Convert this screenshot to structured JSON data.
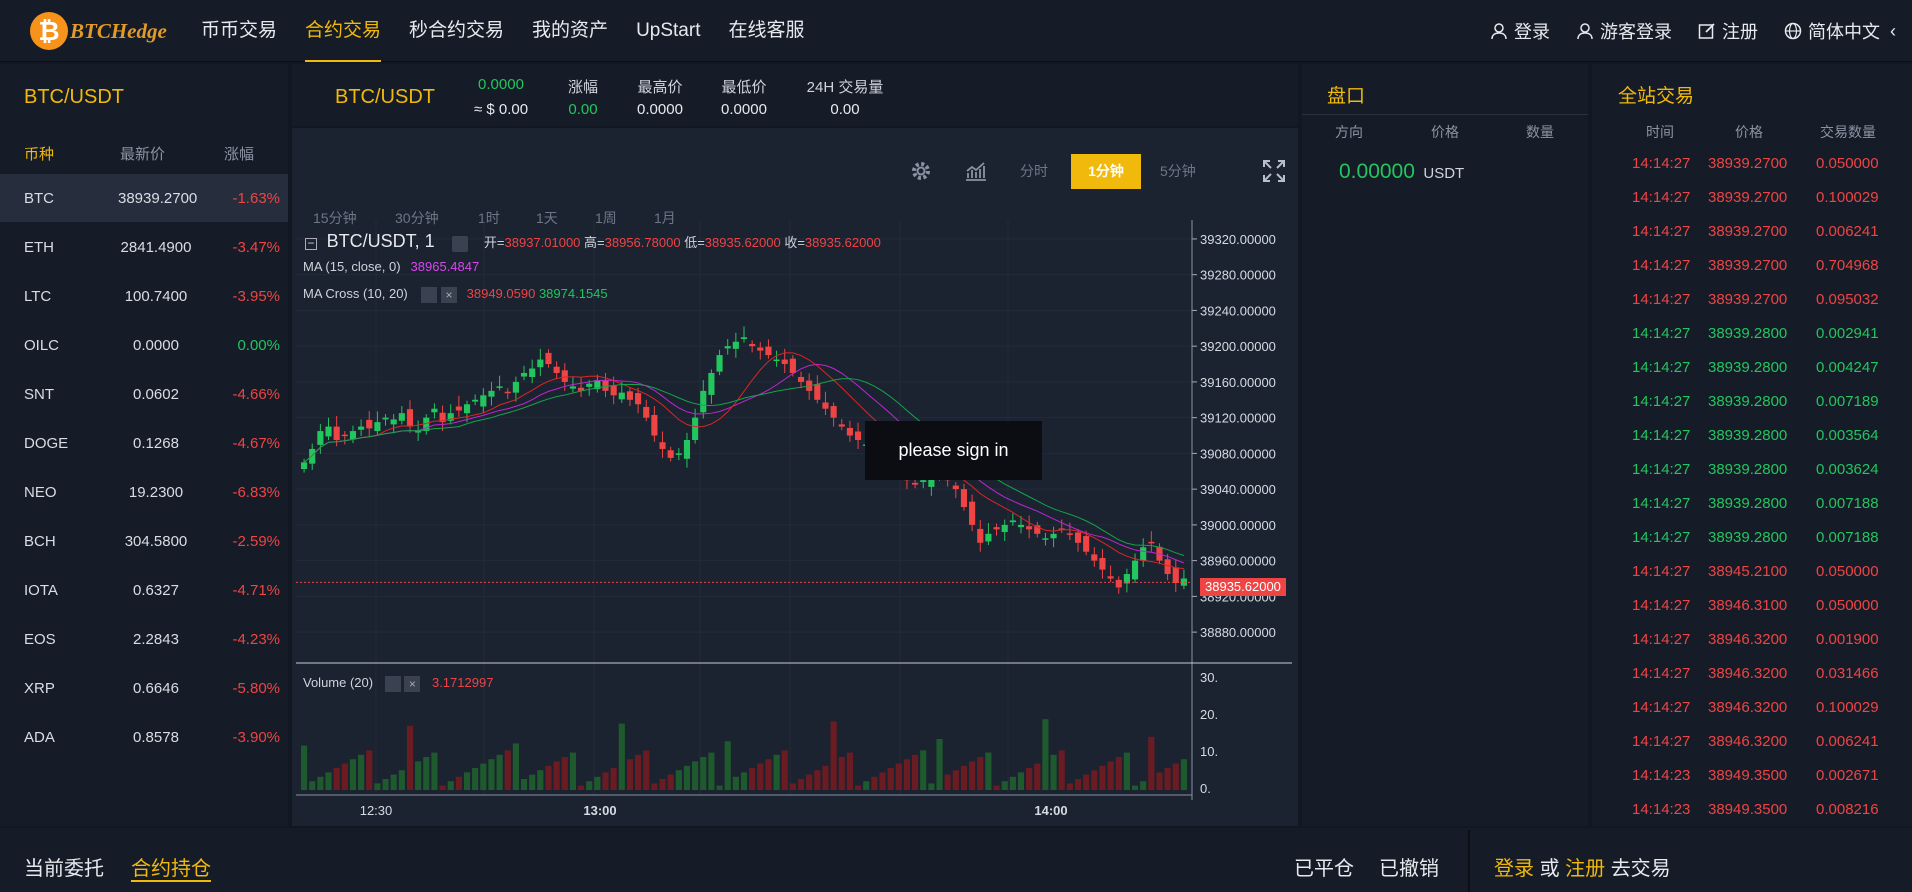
{
  "header": {
    "logo_symbol": "₿",
    "logo_text": "BTCHedge",
    "nav": [
      "币币交易",
      "合约交易",
      "秒合约交易",
      "我的资产",
      "UpStart",
      "在线客服"
    ],
    "login": "登录",
    "guest_login": "游客登录",
    "register": "注册",
    "language": "简体中文"
  },
  "market": {
    "title": "BTC/USDT",
    "col_coin": "币种",
    "col_price": "最新价",
    "col_change": "涨幅",
    "rows": [
      {
        "coin": "BTC",
        "price": "38939.2700",
        "change": "-1.63%",
        "dir": "down"
      },
      {
        "coin": "ETH",
        "price": "2841.4900",
        "change": "-3.47%",
        "dir": "down"
      },
      {
        "coin": "LTC",
        "price": "100.7400",
        "change": "-3.95%",
        "dir": "down"
      },
      {
        "coin": "OILC",
        "price": "0.0000",
        "change": "0.00%",
        "dir": "up"
      },
      {
        "coin": "SNT",
        "price": "0.0602",
        "change": "-4.66%",
        "dir": "down"
      },
      {
        "coin": "DOGE",
        "price": "0.1268",
        "change": "-4.67%",
        "dir": "down"
      },
      {
        "coin": "NEO",
        "price": "19.2300",
        "change": "-6.83%",
        "dir": "down"
      },
      {
        "coin": "BCH",
        "price": "304.5800",
        "change": "-2.59%",
        "dir": "down"
      },
      {
        "coin": "IOTA",
        "price": "0.6327",
        "change": "-4.71%",
        "dir": "down"
      },
      {
        "coin": "EOS",
        "price": "2.2843",
        "change": "-4.23%",
        "dir": "down"
      },
      {
        "coin": "XRP",
        "price": "0.6646",
        "change": "-5.80%",
        "dir": "down"
      },
      {
        "coin": "ADA",
        "price": "0.8578",
        "change": "-3.90%",
        "dir": "down"
      }
    ]
  },
  "ticker": {
    "pair": "BTC/USDT",
    "price": "0.0000",
    "price_usd": "≈ $ 0.00",
    "change_label": "涨幅",
    "change": "0.00",
    "high_label": "最高价",
    "high": "0.0000",
    "low_label": "最低价",
    "low": "0.0000",
    "vol_label": "24H 交易量",
    "vol": "0.00"
  },
  "chart_toolbar": {
    "timeframes_top": [
      "分时",
      "1分钟",
      "5分钟"
    ],
    "timeframes_bottom": [
      "15分钟",
      "30分钟",
      "1时",
      "1天",
      "1周",
      "1月"
    ],
    "active": "1分钟"
  },
  "chart_legend": {
    "symbol": "BTC/USDT, 1",
    "open_label": "开=",
    "open": "38937.01000",
    "high_label": "高=",
    "high": "38956.78000",
    "low_label": "低=",
    "low": "38935.62000",
    "close_label": "收=",
    "close": "38935.62000",
    "ma_label": "MA (15, close, 0)",
    "ma_value": "38965.4847",
    "macross_label": "MA Cross (10, 20)",
    "macross_a": "38949.0590",
    "macross_b": "38974.1545",
    "volume_label": "Volume (20)",
    "volume_value": "3.1712997",
    "last_price_tag": "38935.62000"
  },
  "chart_data": {
    "type": "candlestick",
    "price_axis_ticks": [
      "39320.00000",
      "39280.00000",
      "39240.00000",
      "39200.00000",
      "39160.00000",
      "39120.00000",
      "39080.00000",
      "39040.00000",
      "39000.00000",
      "38960.00000",
      "38920.00000",
      "38880.00000"
    ],
    "volume_axis_ticks": [
      "30.",
      "20.",
      "10.",
      "0."
    ],
    "time_ticks": [
      "12:30",
      "13:00",
      "14:00"
    ],
    "ylim": [
      38860,
      39330
    ],
    "last_price": 38935.62
  },
  "sign_in_overlay": "please sign in",
  "orderbook": {
    "title": "盘口",
    "col_dir": "方向",
    "col_price": "价格",
    "col_qty": "数量",
    "price": "0.00000",
    "unit": "USDT"
  },
  "trades": {
    "title": "全站交易",
    "col_time": "时间",
    "col_price": "价格",
    "col_qty": "交易数量",
    "rows": [
      {
        "t": "14:14:27",
        "p": "38939.2700",
        "q": "0.050000",
        "s": "sell"
      },
      {
        "t": "14:14:27",
        "p": "38939.2700",
        "q": "0.100029",
        "s": "sell"
      },
      {
        "t": "14:14:27",
        "p": "38939.2700",
        "q": "0.006241",
        "s": "sell"
      },
      {
        "t": "14:14:27",
        "p": "38939.2700",
        "q": "0.704968",
        "s": "sell"
      },
      {
        "t": "14:14:27",
        "p": "38939.2700",
        "q": "0.095032",
        "s": "sell"
      },
      {
        "t": "14:14:27",
        "p": "38939.2800",
        "q": "0.002941",
        "s": "buy"
      },
      {
        "t": "14:14:27",
        "p": "38939.2800",
        "q": "0.004247",
        "s": "buy"
      },
      {
        "t": "14:14:27",
        "p": "38939.2800",
        "q": "0.007189",
        "s": "buy"
      },
      {
        "t": "14:14:27",
        "p": "38939.2800",
        "q": "0.003564",
        "s": "buy"
      },
      {
        "t": "14:14:27",
        "p": "38939.2800",
        "q": "0.003624",
        "s": "buy"
      },
      {
        "t": "14:14:27",
        "p": "38939.2800",
        "q": "0.007188",
        "s": "buy"
      },
      {
        "t": "14:14:27",
        "p": "38939.2800",
        "q": "0.007188",
        "s": "buy"
      },
      {
        "t": "14:14:27",
        "p": "38945.2100",
        "q": "0.050000",
        "s": "sell"
      },
      {
        "t": "14:14:27",
        "p": "38946.3100",
        "q": "0.050000",
        "s": "sell"
      },
      {
        "t": "14:14:27",
        "p": "38946.3200",
        "q": "0.001900",
        "s": "sell"
      },
      {
        "t": "14:14:27",
        "p": "38946.3200",
        "q": "0.031466",
        "s": "sell"
      },
      {
        "t": "14:14:27",
        "p": "38946.3200",
        "q": "0.100029",
        "s": "sell"
      },
      {
        "t": "14:14:27",
        "p": "38946.3200",
        "q": "0.006241",
        "s": "sell"
      },
      {
        "t": "14:14:23",
        "p": "38949.3500",
        "q": "0.002671",
        "s": "sell"
      },
      {
        "t": "14:14:23",
        "p": "38949.3500",
        "q": "0.008216",
        "s": "sell"
      }
    ]
  },
  "bottom": {
    "tab_current": "当前委托",
    "tab_position": "合约持仓",
    "closed": "已平仓",
    "cancelled": "已撤销",
    "login": "登录",
    "or": "或",
    "register": "注册",
    "to_trade": "去交易"
  },
  "colors": {
    "accent": "#f0b90b",
    "up": "#22c55e",
    "down": "#ef4444",
    "bg": "#121822",
    "panel": "#161c27"
  }
}
